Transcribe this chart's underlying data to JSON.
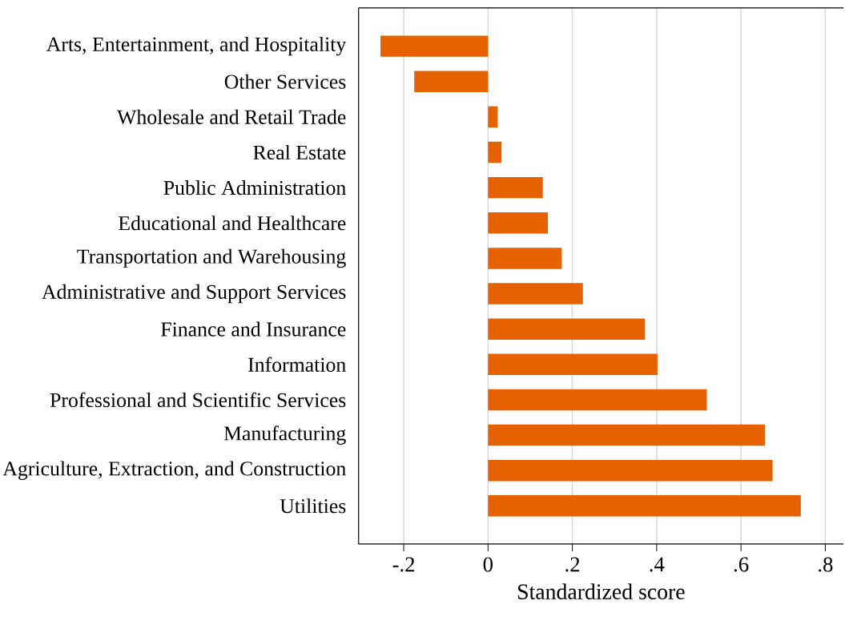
{
  "chart_data": {
    "type": "bar",
    "orientation": "horizontal",
    "xlabel": "Standardized score",
    "categories": [
      "Arts, Entertainment, and Hospitality",
      "Other Services",
      "Wholesale and Retail Trade",
      "Real Estate",
      "Public Administration",
      "Educational and Healthcare",
      "Transportation and Warehousing",
      "Administrative and Support Services",
      "Finance and Insurance",
      "Information",
      "Professional and Scientific Services",
      "Manufacturing",
      "Agriculture, Extraction, and Construction",
      "Utilities"
    ],
    "values": [
      -0.255,
      -0.175,
      0.023,
      0.032,
      0.13,
      0.142,
      0.175,
      0.225,
      0.372,
      0.402,
      0.519,
      0.657,
      0.675,
      0.742
    ],
    "color": "#e66100",
    "xlim": [
      -0.307,
      0.843
    ],
    "xticks": [
      {
        "value": -0.2,
        "label": "-.2"
      },
      {
        "value": 0,
        "label": "0"
      },
      {
        "value": 0.2,
        "label": ".2"
      },
      {
        "value": 0.4,
        "label": ".4"
      },
      {
        "value": 0.6,
        "label": ".6"
      },
      {
        "value": 0.8,
        "label": ".8"
      }
    ],
    "grid": "x"
  }
}
